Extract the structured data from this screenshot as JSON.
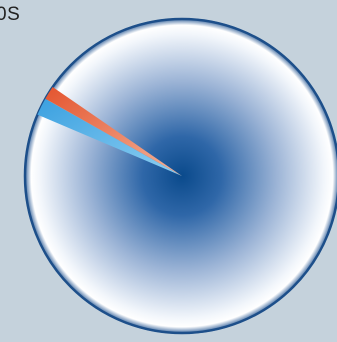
{
  "page": {
    "background": "#c5d2dc",
    "partial_label": "0S"
  },
  "chart_data": {
    "type": "pie",
    "style": "radial-gradient disc, slices start at the top and continue clockwise",
    "slices": [
      {
        "value": 1.8,
        "color": "#5ab4e6"
      },
      {
        "value": 1.4,
        "color": "#e8704a"
      },
      {
        "value": 96.8,
        "color": "#2a5f9e"
      }
    ],
    "colors": {
      "disc_center": "#0a4a8c",
      "disc_mid": "#9cb4d6",
      "disc_edge": "#ffffff",
      "rim": "#1d4f8a"
    }
  }
}
